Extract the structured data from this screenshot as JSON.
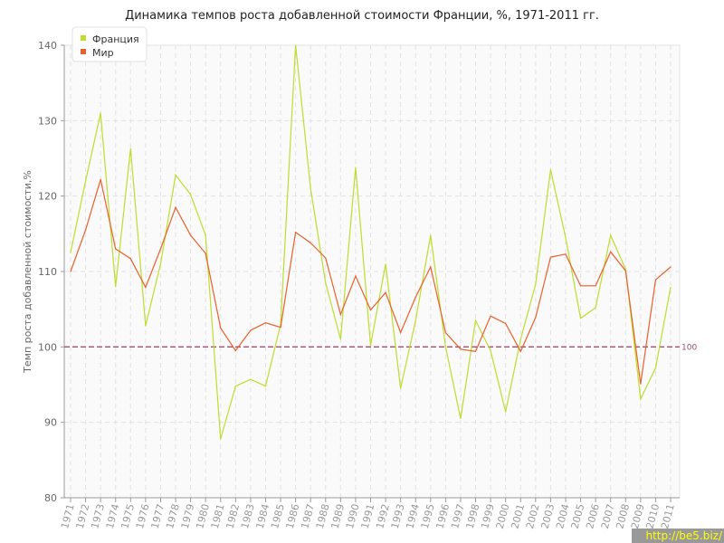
{
  "chart_data": {
    "type": "line",
    "title": "Динамика темпов роста добавленной стоимости Франции, %, 1971-2011 гг.",
    "xlabel": "",
    "ylabel": "Темп роста добавленной стоимости,%",
    "ylim": [
      80,
      140
    ],
    "yticks": [
      80,
      90,
      100,
      110,
      120,
      130,
      140
    ],
    "grid": true,
    "legend": "top-left",
    "reference_line": {
      "value": 100,
      "label": "100",
      "color": "#a05070"
    },
    "x": [
      1971,
      1972,
      1973,
      1974,
      1975,
      1976,
      1977,
      1978,
      1979,
      1980,
      1981,
      1982,
      1983,
      1984,
      1985,
      1986,
      1987,
      1988,
      1989,
      1990,
      1991,
      1992,
      1993,
      1994,
      1995,
      1996,
      1997,
      1998,
      1999,
      2000,
      2001,
      2002,
      2003,
      2004,
      2005,
      2006,
      2007,
      2008,
      2009,
      2010,
      2011
    ],
    "series": [
      {
        "name": "Франция",
        "color": "#bedd2c",
        "values": [
          112.5,
          122,
          131,
          108,
          126.3,
          102.8,
          111,
          122.8,
          120.2,
          114.8,
          87.8,
          94.8,
          95.7,
          94.8,
          103,
          140,
          121,
          108.5,
          101,
          123.8,
          100.2,
          111,
          94.5,
          103.5,
          114.8,
          100,
          90.5,
          103.5,
          99.5,
          91.4,
          101,
          108.3,
          123.5,
          114.5,
          103.8,
          105.2,
          114.8,
          110.3,
          93.1,
          97.2,
          107.9
        ]
      },
      {
        "name": "Мир",
        "color": "#e8602c",
        "values": [
          110,
          115.5,
          122.2,
          113,
          111.7,
          107.9,
          113,
          118.5,
          114.8,
          112.4,
          102.5,
          99.5,
          102.2,
          103.2,
          102.6,
          115.2,
          113.8,
          111.8,
          104.3,
          109.4,
          104.9,
          107.2,
          101.9,
          106.6,
          110.6,
          101.9,
          99.7,
          99.4,
          104.1,
          103.1,
          99.4,
          103.9,
          111.9,
          112.3,
          108.1,
          108.1,
          112.6,
          110.1,
          95.1,
          108.9,
          110.6
        ]
      }
    ]
  },
  "watermark": "http://be5.biz/"
}
